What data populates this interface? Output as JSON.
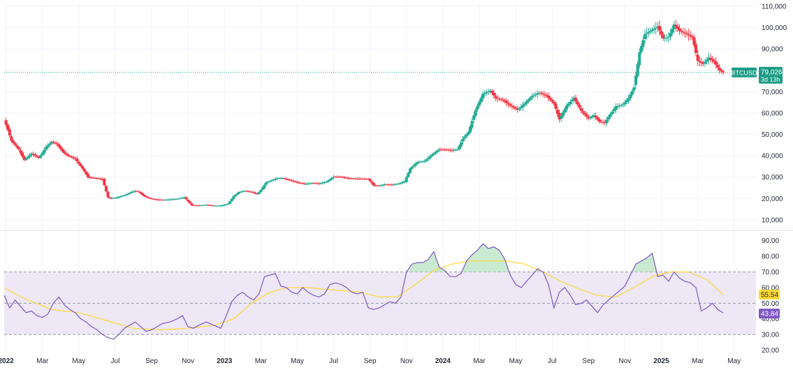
{
  "colors": {
    "up": "#22ab94",
    "down": "#f23645",
    "rsi_line": "#7e57c2",
    "rsi_ma": "#fdd835",
    "rsi_band": "#ede7f6",
    "rsi_fill_over": "#bfe6c8",
    "price_tag": "#1e9b85",
    "rsi_tag": "#7e57c2",
    "ma_tag": "#fdd835",
    "grid": "#f0f3fa",
    "axis_text": "#1f2430"
  },
  "chart_data": [
    {
      "type": "candlestick",
      "name": "price",
      "symbol": "BTCUSD",
      "last_value": "79,026",
      "countdown": "3d 13h",
      "y_ticks": [
        "110,000",
        "100,000",
        "90,000",
        "80,000",
        "70,000",
        "60,000",
        "50,000",
        "40,000",
        "30,000",
        "20,000",
        "10,000"
      ],
      "y_tick_values": [
        110000,
        100000,
        90000,
        80000,
        70000,
        60000,
        50000,
        40000,
        30000,
        20000,
        10000
      ],
      "ylim": [
        7000,
        111000
      ],
      "last_price": 79026,
      "x_tick_labels": [
        "2022",
        "Mar",
        "May",
        "Jul",
        "Sep",
        "Nov",
        "2023",
        "Mar",
        "May",
        "Jul",
        "Sep",
        "Nov",
        "2024",
        "Mar",
        "May",
        "Jul",
        "Sep",
        "Nov",
        "2025",
        "Mar",
        "May"
      ],
      "x_tick_positions": [
        0,
        2,
        4,
        6,
        8,
        10,
        12,
        14,
        16,
        18,
        20,
        22,
        24,
        26,
        28,
        30,
        32,
        34,
        36,
        38,
        40
      ],
      "x_tick_bold": [
        true,
        false,
        false,
        false,
        false,
        false,
        true,
        false,
        false,
        false,
        false,
        false,
        true,
        false,
        false,
        false,
        false,
        false,
        true,
        false,
        false
      ],
      "xlim": [
        -0.1,
        41.2
      ],
      "candle_period_months": 0.1,
      "closes": [
        [
          -0.1,
          57000
        ],
        [
          0.3,
          47000
        ],
        [
          0.7,
          43000
        ],
        [
          1.0,
          38000
        ],
        [
          1.4,
          41000
        ],
        [
          1.8,
          39000
        ],
        [
          2.2,
          44000
        ],
        [
          2.5,
          46500
        ],
        [
          2.8,
          45500
        ],
        [
          3.1,
          42000
        ],
        [
          3.4,
          40000
        ],
        [
          3.8,
          38500
        ],
        [
          4.2,
          34000
        ],
        [
          4.5,
          30000
        ],
        [
          4.9,
          29500
        ],
        [
          5.3,
          29000
        ],
        [
          5.6,
          20500
        ],
        [
          5.8,
          20000
        ],
        [
          6.1,
          20500
        ],
        [
          6.5,
          21500
        ],
        [
          6.9,
          23000
        ],
        [
          7.1,
          23500
        ],
        [
          7.3,
          23000
        ],
        [
          7.6,
          21000
        ],
        [
          7.9,
          20000
        ],
        [
          8.2,
          19500
        ],
        [
          8.6,
          19300
        ],
        [
          9.0,
          19500
        ],
        [
          9.4,
          19800
        ],
        [
          9.8,
          20500
        ],
        [
          10.2,
          16800
        ],
        [
          10.6,
          16700
        ],
        [
          11.0,
          17000
        ],
        [
          11.4,
          16600
        ],
        [
          11.8,
          16600
        ],
        [
          12.2,
          17500
        ],
        [
          12.5,
          21000
        ],
        [
          12.8,
          23000
        ],
        [
          13.1,
          23500
        ],
        [
          13.5,
          23000
        ],
        [
          13.8,
          22000
        ],
        [
          14.0,
          24000
        ],
        [
          14.3,
          27500
        ],
        [
          14.6,
          28500
        ],
        [
          14.9,
          29500
        ],
        [
          15.2,
          29500
        ],
        [
          15.6,
          28500
        ],
        [
          16.0,
          27500
        ],
        [
          16.4,
          26800
        ],
        [
          16.8,
          27200
        ],
        [
          17.2,
          27000
        ],
        [
          17.6,
          27800
        ],
        [
          18.0,
          30200
        ],
        [
          18.4,
          30100
        ],
        [
          18.8,
          29400
        ],
        [
          19.2,
          29300
        ],
        [
          19.6,
          29200
        ],
        [
          19.9,
          29100
        ],
        [
          20.2,
          26100
        ],
        [
          20.5,
          26000
        ],
        [
          20.8,
          26600
        ],
        [
          21.2,
          26400
        ],
        [
          21.6,
          27000
        ],
        [
          21.9,
          28000
        ],
        [
          22.2,
          34000
        ],
        [
          22.6,
          37000
        ],
        [
          23.0,
          37500
        ],
        [
          23.4,
          40500
        ],
        [
          23.8,
          43000
        ],
        [
          24.2,
          42800
        ],
        [
          24.5,
          42500
        ],
        [
          24.8,
          43000
        ],
        [
          25.1,
          48000
        ],
        [
          25.4,
          51000
        ],
        [
          25.8,
          61500
        ],
        [
          26.2,
          69000
        ],
        [
          26.6,
          70500
        ],
        [
          26.9,
          67000
        ],
        [
          27.3,
          66000
        ],
        [
          27.7,
          63500
        ],
        [
          28.1,
          61500
        ],
        [
          28.5,
          64500
        ],
        [
          28.9,
          68000
        ],
        [
          29.3,
          69500
        ],
        [
          29.7,
          68000
        ],
        [
          30.1,
          64500
        ],
        [
          30.4,
          57000
        ],
        [
          30.8,
          63500
        ],
        [
          31.2,
          67000
        ],
        [
          31.6,
          61000
        ],
        [
          32.0,
          57500
        ],
        [
          32.3,
          59000
        ],
        [
          32.6,
          56000
        ],
        [
          32.9,
          55500
        ],
        [
          33.2,
          59500
        ],
        [
          33.5,
          63000
        ],
        [
          33.9,
          64000
        ],
        [
          34.2,
          67000
        ],
        [
          34.5,
          72000
        ],
        [
          34.8,
          88500
        ],
        [
          35.1,
          97000
        ],
        [
          35.4,
          98500
        ],
        [
          35.8,
          100500
        ],
        [
          36.1,
          95000
        ],
        [
          36.4,
          95500
        ],
        [
          36.7,
          101500
        ],
        [
          37.0,
          98500
        ],
        [
          37.4,
          97000
        ],
        [
          37.7,
          95500
        ],
        [
          38.0,
          84500
        ],
        [
          38.3,
          83000
        ],
        [
          38.6,
          86000
        ],
        [
          38.9,
          84000
        ],
        [
          39.2,
          80000
        ],
        [
          39.4,
          79026
        ]
      ]
    },
    {
      "type": "line",
      "name": "rsi",
      "y_ticks": [
        "90.00",
        "80.00",
        "70.00",
        "60.00",
        "50.00",
        "40.00",
        "30.00",
        "20.00"
      ],
      "y_tick_values": [
        90,
        80,
        70,
        60,
        50,
        40,
        30,
        20
      ],
      "ylim": [
        18,
        93
      ],
      "xlim": [
        -0.1,
        41.2
      ],
      "band": [
        30,
        70
      ],
      "midline": 50,
      "rsi_last": "43.84",
      "ma_last": "55.54",
      "series": [
        {
          "name": "RSI",
          "points": [
            [
              -0.1,
              55
            ],
            [
              0.2,
              47
            ],
            [
              0.5,
              52
            ],
            [
              0.8,
              48
            ],
            [
              1.1,
              44
            ],
            [
              1.4,
              45
            ],
            [
              1.7,
              42
            ],
            [
              2.0,
              41
            ],
            [
              2.3,
              43
            ],
            [
              2.6,
              50
            ],
            [
              2.9,
              54
            ],
            [
              3.2,
              49
            ],
            [
              3.5,
              46
            ],
            [
              3.8,
              44
            ],
            [
              4.1,
              40
            ],
            [
              4.4,
              38
            ],
            [
              4.7,
              35
            ],
            [
              5.0,
              33
            ],
            [
              5.3,
              30
            ],
            [
              5.6,
              28
            ],
            [
              5.9,
              27
            ],
            [
              6.2,
              30
            ],
            [
              6.5,
              34
            ],
            [
              6.8,
              36
            ],
            [
              7.1,
              38
            ],
            [
              7.4,
              35
            ],
            [
              7.7,
              32
            ],
            [
              8.0,
              33
            ],
            [
              8.3,
              35
            ],
            [
              8.6,
              37
            ],
            [
              9.0,
              38
            ],
            [
              9.4,
              40
            ],
            [
              9.7,
              42
            ],
            [
              10.0,
              35
            ],
            [
              10.3,
              34
            ],
            [
              10.6,
              36
            ],
            [
              11.0,
              38
            ],
            [
              11.4,
              36
            ],
            [
              11.8,
              34
            ],
            [
              12.1,
              42
            ],
            [
              12.4,
              51
            ],
            [
              12.7,
              55
            ],
            [
              13.0,
              57
            ],
            [
              13.3,
              54
            ],
            [
              13.6,
              52
            ],
            [
              13.9,
              56
            ],
            [
              14.2,
              67
            ],
            [
              14.5,
              68
            ],
            [
              14.8,
              69
            ],
            [
              15.1,
              61
            ],
            [
              15.4,
              60
            ],
            [
              15.7,
              57
            ],
            [
              16.0,
              56
            ],
            [
              16.3,
              60
            ],
            [
              16.6,
              57
            ],
            [
              16.9,
              55
            ],
            [
              17.2,
              54
            ],
            [
              17.5,
              56
            ],
            [
              17.8,
              62
            ],
            [
              18.1,
              63
            ],
            [
              18.4,
              62
            ],
            [
              18.7,
              60
            ],
            [
              19.0,
              57
            ],
            [
              19.3,
              56
            ],
            [
              19.6,
              57
            ],
            [
              19.9,
              47
            ],
            [
              20.2,
              46
            ],
            [
              20.5,
              47
            ],
            [
              20.8,
              49
            ],
            [
              21.1,
              51
            ],
            [
              21.4,
              50
            ],
            [
              21.7,
              54
            ],
            [
              22.0,
              70
            ],
            [
              22.3,
              75
            ],
            [
              22.6,
              76
            ],
            [
              22.9,
              76
            ],
            [
              23.2,
              78
            ],
            [
              23.5,
              83
            ],
            [
              23.8,
              73
            ],
            [
              24.1,
              71
            ],
            [
              24.4,
              67
            ],
            [
              24.7,
              67
            ],
            [
              25.0,
              69
            ],
            [
              25.3,
              77
            ],
            [
              25.6,
              81
            ],
            [
              25.9,
              84
            ],
            [
              26.2,
              88
            ],
            [
              26.5,
              85
            ],
            [
              26.8,
              86
            ],
            [
              27.1,
              84
            ],
            [
              27.4,
              78
            ],
            [
              27.7,
              68
            ],
            [
              28.0,
              62
            ],
            [
              28.3,
              60
            ],
            [
              28.6,
              64
            ],
            [
              28.9,
              68
            ],
            [
              29.2,
              72
            ],
            [
              29.5,
              70
            ],
            [
              29.8,
              62
            ],
            [
              30.1,
              47
            ],
            [
              30.4,
              57
            ],
            [
              30.7,
              60
            ],
            [
              31.0,
              55
            ],
            [
              31.3,
              49
            ],
            [
              31.6,
              50
            ],
            [
              31.9,
              52
            ],
            [
              32.2,
              48
            ],
            [
              32.5,
              44
            ],
            [
              32.8,
              49
            ],
            [
              33.1,
              52
            ],
            [
              33.4,
              55
            ],
            [
              33.7,
              58
            ],
            [
              34.0,
              61
            ],
            [
              34.3,
              68
            ],
            [
              34.6,
              75
            ],
            [
              34.9,
              77
            ],
            [
              35.2,
              79
            ],
            [
              35.5,
              82
            ],
            [
              35.8,
              67
            ],
            [
              36.1,
              68
            ],
            [
              36.4,
              64
            ],
            [
              36.7,
              70
            ],
            [
              37.0,
              66
            ],
            [
              37.3,
              64
            ],
            [
              37.6,
              63
            ],
            [
              37.9,
              60
            ],
            [
              38.2,
              45
            ],
            [
              38.5,
              47
            ],
            [
              38.8,
              50
            ],
            [
              39.1,
              46
            ],
            [
              39.4,
              43.84
            ]
          ]
        },
        {
          "name": "RSI-based MA",
          "points": [
            [
              -0.1,
              60
            ],
            [
              1.0,
              53
            ],
            [
              2.5,
              46
            ],
            [
              4.0,
              44
            ],
            [
              5.5,
              39
            ],
            [
              7.0,
              34
            ],
            [
              8.5,
              33
            ],
            [
              10.0,
              34
            ],
            [
              11.5,
              36
            ],
            [
              12.5,
              40
            ],
            [
              13.5,
              50
            ],
            [
              14.5,
              57
            ],
            [
              15.5,
              60
            ],
            [
              16.5,
              60
            ],
            [
              17.5,
              59
            ],
            [
              18.5,
              58
            ],
            [
              19.5,
              57
            ],
            [
              20.5,
              54
            ],
            [
              21.5,
              54
            ],
            [
              22.5,
              62
            ],
            [
              23.5,
              71
            ],
            [
              24.5,
              75
            ],
            [
              25.5,
              77
            ],
            [
              26.5,
              77
            ],
            [
              27.5,
              77
            ],
            [
              28.5,
              75
            ],
            [
              29.5,
              70
            ],
            [
              30.5,
              64
            ],
            [
              31.5,
              59
            ],
            [
              32.5,
              55
            ],
            [
              33.5,
              54
            ],
            [
              34.5,
              60
            ],
            [
              35.5,
              67
            ],
            [
              36.5,
              70
            ],
            [
              37.5,
              70
            ],
            [
              38.5,
              65
            ],
            [
              39.4,
              55.54
            ]
          ]
        }
      ]
    }
  ]
}
